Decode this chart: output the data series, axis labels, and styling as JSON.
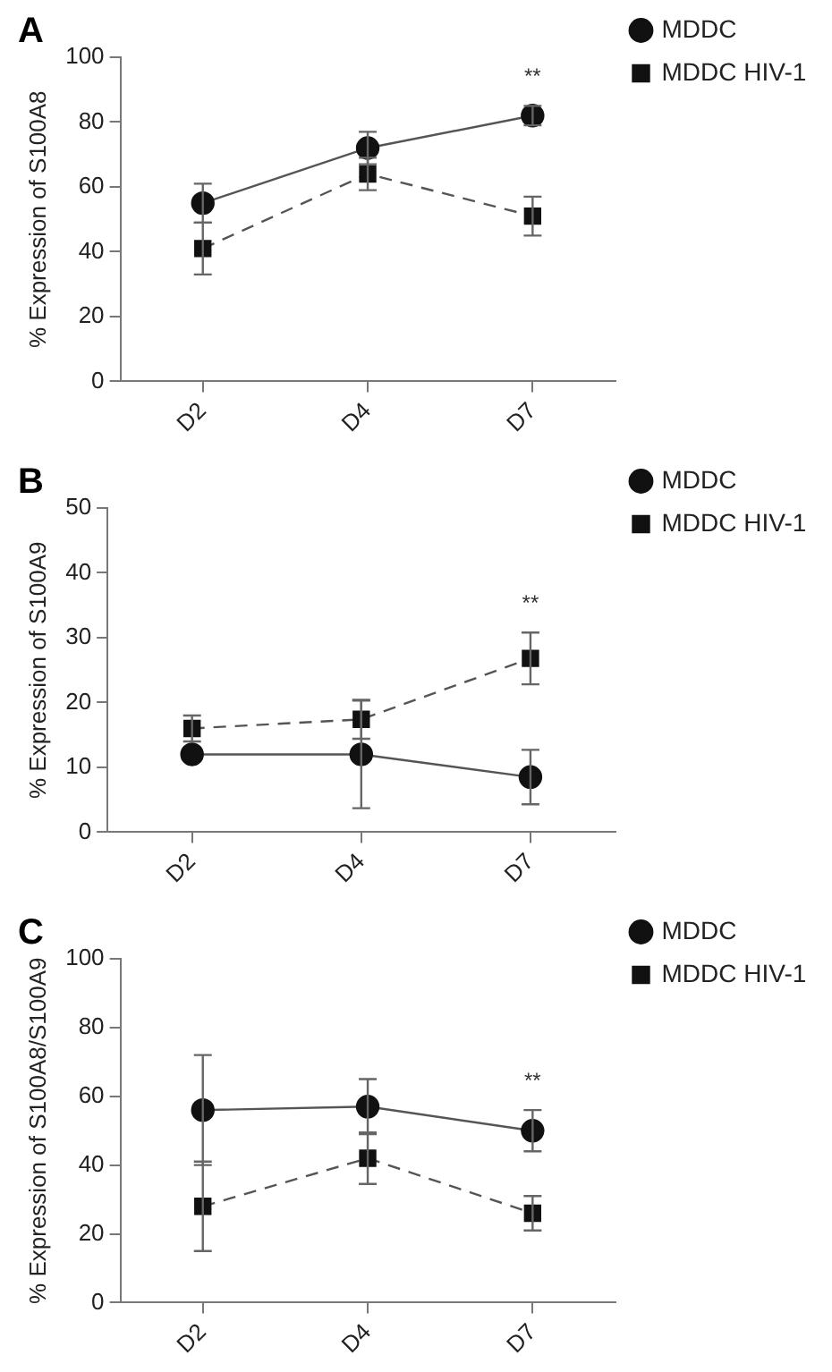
{
  "chart_data": [
    {
      "type": "line",
      "title": "A",
      "ylabel": "% Expression of S100A8",
      "categories": [
        "D2",
        "D4",
        "D7"
      ],
      "series": [
        {
          "name": "MDDC",
          "color": "#111111",
          "marker": "circle",
          "line_style": "solid",
          "values": [
            55,
            72,
            82
          ],
          "errors": [
            6,
            5,
            3
          ]
        },
        {
          "name": "MDDC HIV-1",
          "color": "#111111",
          "marker": "square",
          "line_style": "dashed",
          "values": [
            41,
            64,
            51
          ],
          "errors": [
            8,
            5,
            6
          ]
        }
      ],
      "ylim": [
        0,
        100
      ],
      "yticks": [
        0,
        20,
        40,
        60,
        80,
        100
      ],
      "grid": false,
      "legend": "right",
      "annotations": [
        "**"
      ]
    },
    {
      "type": "line",
      "title": "B",
      "ylabel": "% Expression of S100A9",
      "categories": [
        "D2",
        "D4",
        "D7"
      ],
      "series": [
        {
          "name": "MDDC",
          "color": "#111111",
          "marker": "circle",
          "line_style": "solid",
          "values": [
            12,
            12,
            8.5
          ],
          "errors": [
            null,
            8.3,
            4.2
          ]
        },
        {
          "name": "MDDC HIV-1",
          "color": "#111111",
          "marker": "square",
          "line_style": "dashed",
          "values": [
            16,
            17.4,
            26.8
          ],
          "errors": [
            2,
            3,
            4
          ]
        }
      ],
      "ylim": [
        0,
        50
      ],
      "yticks": [
        0,
        10,
        20,
        30,
        40,
        50
      ],
      "grid": false,
      "legend": "right",
      "annotations": [
        "**"
      ]
    },
    {
      "type": "line",
      "title": "C",
      "ylabel": "% Expression of S100A8/S100A9",
      "categories": [
        "D2",
        "D4",
        "D7"
      ],
      "series": [
        {
          "name": "MDDC",
          "color": "#111111",
          "marker": "circle",
          "line_style": "solid",
          "values": [
            56,
            57,
            50
          ],
          "errors": [
            16,
            8,
            6
          ]
        },
        {
          "name": "MDDC HIV-1",
          "color": "#111111",
          "marker": "square",
          "line_style": "dashed",
          "values": [
            28,
            42,
            26
          ],
          "errors": [
            13,
            7.5,
            5
          ]
        }
      ],
      "ylim": [
        0,
        100
      ],
      "yticks": [
        0,
        20,
        40,
        60,
        80,
        100
      ],
      "grid": false,
      "legend": "right",
      "annotations": [
        "**"
      ]
    }
  ]
}
